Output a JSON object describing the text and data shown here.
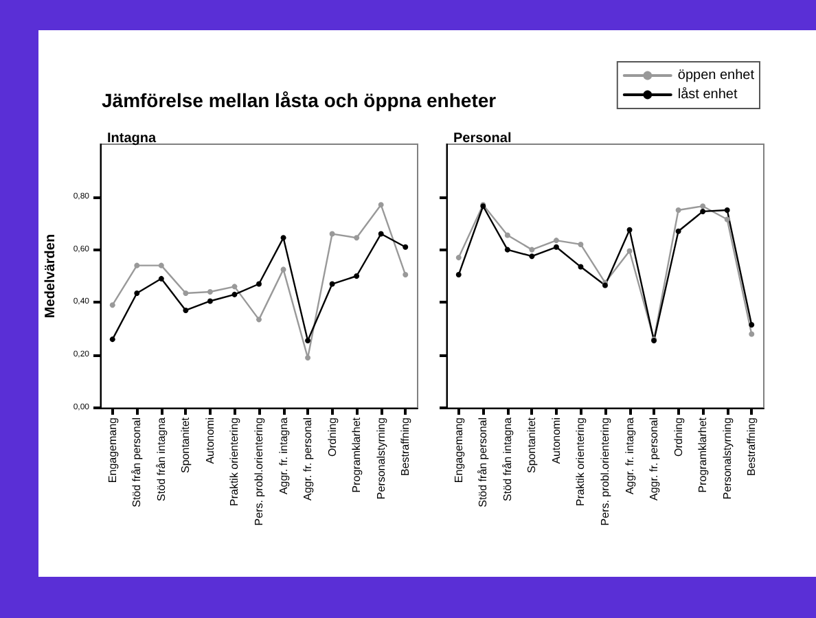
{
  "chart_data": [
    {
      "type": "line",
      "title": "Intagna",
      "annotations": [
        "Jämförelse mellan låsta och öppna enheter"
      ],
      "ylabel": "Medelvärden",
      "categories": [
        "Engagemang",
        "Stöd från personal",
        "Stöd från intagna",
        "Spontanitet",
        "Autonomi",
        "Praktik orientering",
        "Pers. probl.orientering",
        "Aggr. fr. intagna",
        "Aggr. fr. personal",
        "Ordning",
        "Programklarhet",
        "Personalstyrning",
        "Bestraffning"
      ],
      "series": [
        {
          "color": "#999999",
          "values": [
            0.39,
            0.54,
            0.54,
            0.435,
            0.44,
            0.46,
            0.335,
            0.525,
            0.19,
            0.66,
            0.645,
            0.77,
            0.505
          ]
        },
        {
          "color": "#000000",
          "values": [
            0.26,
            0.435,
            0.49,
            0.37,
            0.405,
            0.43,
            0.47,
            0.645,
            0.255,
            0.47,
            0.5,
            0.66,
            0.61
          ]
        }
      ],
      "ylim": [
        0,
        1
      ],
      "yticks": [
        {
          "value": 0,
          "label": "0,00"
        },
        {
          "value": 0.2,
          "label": "0,20"
        },
        {
          "value": 0.4,
          "label": "0,40"
        },
        {
          "value": 0.6,
          "label": "0,60"
        },
        {
          "value": 0.8,
          "label": "0,80"
        }
      ],
      "grid": false,
      "legend": false,
      "marker": "circle",
      "line_style": "solid"
    },
    {
      "type": "line",
      "title": "Personal",
      "categories": [
        "Engagemang",
        "Stöd från personal",
        "Stöd från intagna",
        "Spontanitet",
        "Autonomi",
        "Praktik orientering",
        "Pers. probl.orientering",
        "Aggr. fr. intagna",
        "Aggr. fr. personal",
        "Ordning",
        "Programklarhet",
        "Personalstyrning",
        "Bestraffning"
      ],
      "series": [
        {
          "name": "öppen enhet",
          "color": "#999999",
          "values": [
            0.57,
            0.77,
            0.655,
            0.6,
            0.635,
            0.62,
            0.475,
            0.595,
            0.26,
            0.75,
            0.765,
            0.715,
            0.28
          ]
        },
        {
          "name": "låst enhet",
          "color": "#000000",
          "values": [
            0.505,
            0.765,
            0.6,
            0.575,
            0.61,
            0.535,
            0.465,
            0.675,
            0.255,
            0.67,
            0.745,
            0.75,
            0.315
          ]
        }
      ],
      "ylim": [
        0,
        1
      ],
      "yticks": [
        0,
        0.2,
        0.4,
        0.6,
        0.8
      ],
      "tick_labels": "x",
      "grid": false,
      "legend": "top right",
      "marker": "circle",
      "line_style": "solid"
    }
  ]
}
